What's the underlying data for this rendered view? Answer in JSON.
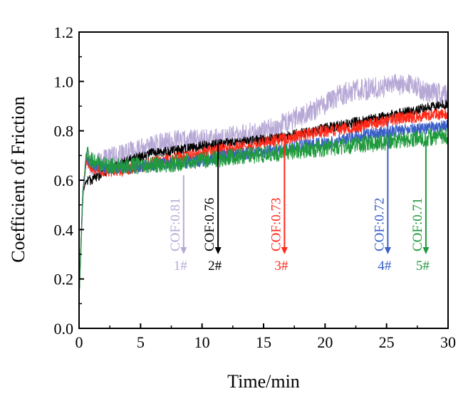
{
  "chart_data": {
    "type": "line",
    "xlabel": "Time/min",
    "ylabel": "Coefficient of Friction",
    "xlim": [
      0,
      30
    ],
    "ylim": [
      0.0,
      1.2
    ],
    "xticks": [
      "0",
      "5",
      "10",
      "15",
      "20",
      "25",
      "30"
    ],
    "yticks": [
      "0.0",
      "0.2",
      "0.4",
      "0.6",
      "0.8",
      "1.0",
      "1.2"
    ],
    "grid": false,
    "series": [
      {
        "name": "1#",
        "color": "#b7a9d6",
        "x": [
          0,
          0.3,
          0.6,
          1,
          2,
          4,
          6,
          8,
          10,
          12,
          14,
          16,
          17,
          18,
          19,
          20,
          21,
          22,
          23,
          24,
          25,
          26,
          27,
          28,
          29,
          30
        ],
        "y": [
          0.12,
          0.5,
          0.7,
          0.66,
          0.68,
          0.71,
          0.74,
          0.76,
          0.76,
          0.77,
          0.79,
          0.81,
          0.84,
          0.86,
          0.88,
          0.91,
          0.94,
          0.96,
          0.97,
          0.97,
          0.98,
          0.99,
          0.99,
          0.96,
          0.95,
          0.94
        ],
        "noise": 0.045
      },
      {
        "name": "2#",
        "color": "#000000",
        "x": [
          0,
          0.3,
          0.6,
          1,
          2,
          4,
          6,
          8,
          10,
          12,
          14,
          16,
          18,
          20,
          22,
          24,
          26,
          28,
          30
        ],
        "y": [
          0.12,
          0.55,
          0.6,
          0.6,
          0.63,
          0.68,
          0.71,
          0.72,
          0.74,
          0.75,
          0.76,
          0.77,
          0.79,
          0.81,
          0.83,
          0.85,
          0.87,
          0.89,
          0.91
        ],
        "noise": 0.02
      },
      {
        "name": "3#",
        "color": "#ff2a1a",
        "x": [
          0,
          0.3,
          0.6,
          1,
          2,
          4,
          6,
          8,
          10,
          12,
          14,
          16,
          18,
          20,
          22,
          24,
          26,
          28,
          30
        ],
        "y": [
          0.12,
          0.55,
          0.68,
          0.65,
          0.64,
          0.64,
          0.67,
          0.69,
          0.71,
          0.73,
          0.74,
          0.76,
          0.78,
          0.8,
          0.81,
          0.83,
          0.85,
          0.86,
          0.87
        ],
        "noise": 0.025
      },
      {
        "name": "4#",
        "color": "#3a5fc8",
        "x": [
          0,
          0.3,
          0.6,
          1,
          2,
          4,
          6,
          8,
          10,
          12,
          14,
          16,
          18,
          20,
          22,
          24,
          26,
          28,
          30
        ],
        "y": [
          0.12,
          0.55,
          0.7,
          0.66,
          0.65,
          0.65,
          0.66,
          0.67,
          0.68,
          0.7,
          0.71,
          0.72,
          0.74,
          0.75,
          0.77,
          0.79,
          0.8,
          0.81,
          0.82
        ],
        "noise": 0.025
      },
      {
        "name": "5#",
        "color": "#1f9a3c",
        "x": [
          0,
          0.3,
          0.6,
          1,
          2,
          4,
          6,
          8,
          10,
          12,
          14,
          16,
          18,
          20,
          22,
          24,
          26,
          28,
          30
        ],
        "y": [
          0.12,
          0.55,
          0.72,
          0.68,
          0.66,
          0.66,
          0.66,
          0.67,
          0.68,
          0.69,
          0.7,
          0.71,
          0.72,
          0.73,
          0.74,
          0.75,
          0.76,
          0.77,
          0.78
        ],
        "noise": 0.035
      }
    ],
    "annotations": [
      {
        "text": "COF:0.81",
        "label": "1#",
        "x": 8.5,
        "y_top": 0.62,
        "y_bottom": 0.3,
        "color": "#b7a9d6"
      },
      {
        "text": "COF:0.76",
        "label": "2#",
        "x": 11.3,
        "y_top": 0.75,
        "y_bottom": 0.3,
        "color": "#000000"
      },
      {
        "text": "COF:0.73",
        "label": "3#",
        "x": 16.7,
        "y_top": 0.77,
        "y_bottom": 0.3,
        "color": "#ff2a1a"
      },
      {
        "text": "COF:0.72",
        "label": "4#",
        "x": 25.1,
        "y_top": 0.84,
        "y_bottom": 0.3,
        "color": "#3a5fc8"
      },
      {
        "text": "COF:0.71",
        "label": "5#",
        "x": 28.2,
        "y_top": 0.76,
        "y_bottom": 0.3,
        "color": "#1f9a3c"
      }
    ]
  }
}
